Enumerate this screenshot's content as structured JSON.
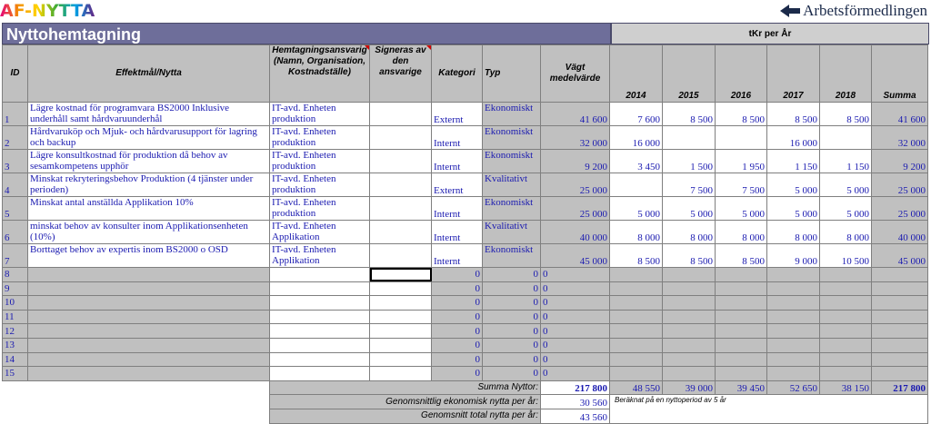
{
  "header": {
    "logo_left": "AF-NYTTA",
    "logo_right": "Arbetsförmedlingen",
    "title": "Nyttohemtagning",
    "tkr_label": "tKr per År"
  },
  "columns": {
    "id": "ID",
    "effect": "Effektmål/Nytta",
    "responsible": "Hemtagningsansvarig (Namn, Organisation, Kostnadställe)",
    "signed": "Signeras av den ansvarige",
    "category": "Kategori",
    "type": "Typ",
    "weighted": "Vägt medelvärde",
    "years": [
      "2014",
      "2015",
      "2016",
      "2017",
      "2018"
    ],
    "sum": "Summa"
  },
  "rows": [
    {
      "id": "1",
      "effect": "Lägre kostnad för programvara BS2000 Inklusive underhåll samt hårdvaruunderhål",
      "responsible": "IT-avd. Enheten produktion",
      "signed": "",
      "category": "Externt",
      "type": "Ekonomiskt",
      "weighted": "41 600",
      "y2014": "7 600",
      "y2015": "8 500",
      "y2016": "8 500",
      "y2017": "8 500",
      "y2018": "8 500",
      "sum": "41 600"
    },
    {
      "id": "2",
      "effect": "Hårdvaruköp och Mjuk- och hårdvarusupport för lagring och backup",
      "responsible": "IT-avd. Enheten produktion",
      "signed": "",
      "category": "Internt",
      "type": "Ekonomiskt",
      "weighted": "32 000",
      "y2014": "16 000",
      "y2015": "",
      "y2016": "",
      "y2017": "16 000",
      "y2018": "",
      "sum": "32 000"
    },
    {
      "id": "3",
      "effect": "Lägre konsultkostnad för produktion då behov av sesamkompetens upphör",
      "responsible": "IT-avd. Enheten produktion",
      "signed": "",
      "category": "Internt",
      "type": "Ekonomiskt",
      "weighted": "9 200",
      "y2014": "3 450",
      "y2015": "1 500",
      "y2016": "1 950",
      "y2017": "1 150",
      "y2018": "1 150",
      "sum": "9 200"
    },
    {
      "id": "4",
      "effect": "Minskat rekryteringsbehov Produktion (4 tjänster under perioden)",
      "responsible": "IT-avd. Enheten produktion",
      "signed": "",
      "category": "Externt",
      "type": "Kvalitativt",
      "weighted": "25 000",
      "y2014": "",
      "y2015": "7 500",
      "y2016": "7 500",
      "y2017": "5 000",
      "y2018": "5 000",
      "sum": "25 000"
    },
    {
      "id": "5",
      "effect": "Minskat antal anställda Applikation 10%",
      "responsible": "IT-avd. Enheten produktion",
      "signed": "",
      "category": "Internt",
      "type": "Ekonomiskt",
      "weighted": "25 000",
      "y2014": "5 000",
      "y2015": "5 000",
      "y2016": "5 000",
      "y2017": "5 000",
      "y2018": "5 000",
      "sum": "25 000"
    },
    {
      "id": "6",
      "effect": "minskat behov av konsulter inom Applikationsenheten (10%)",
      "responsible": "IT-avd. Enheten Applikation",
      "signed": "",
      "category": "Internt",
      "type": "Kvalitativt",
      "weighted": "40 000",
      "y2014": "8 000",
      "y2015": "8 000",
      "y2016": "8 000",
      "y2017": "8 000",
      "y2018": "8 000",
      "sum": "40 000"
    },
    {
      "id": "7",
      "effect": "Borttaget behov av expertis inom BS2000 o OSD",
      "responsible": "IT-avd. Enheten Applikation",
      "signed": "",
      "category": "Internt",
      "type": "Ekonomiskt",
      "weighted": "45 000",
      "y2014": "8 500",
      "y2015": "8 500",
      "y2016": "8 500",
      "y2017": "9 000",
      "y2018": "10 500",
      "sum": "45 000"
    }
  ],
  "empty_rows": [
    "8",
    "9",
    "10",
    "11",
    "12",
    "13",
    "14",
    "15"
  ],
  "zero": "0",
  "summary": {
    "total_label": "Summa Nyttor:",
    "total_weighted": "217 800",
    "totals": [
      "48 550",
      "39 000",
      "39 450",
      "52 650",
      "38 150"
    ],
    "total_sum": "217 800",
    "avg_econ_label": "Genomsnittlig ekonomisk nytta per år:",
    "avg_econ": "30 560",
    "avg_total_label": "Genomsnitt total nytta per år:",
    "avg_total": "43 560",
    "note": "Beräknat på en nyttoperiod av 5 år"
  },
  "colors": {
    "title_bg": "#6e6e9a",
    "cell_gray": "#c0c0c0",
    "value_text": "#1a1ab0",
    "comment_marker": "#d00000"
  }
}
